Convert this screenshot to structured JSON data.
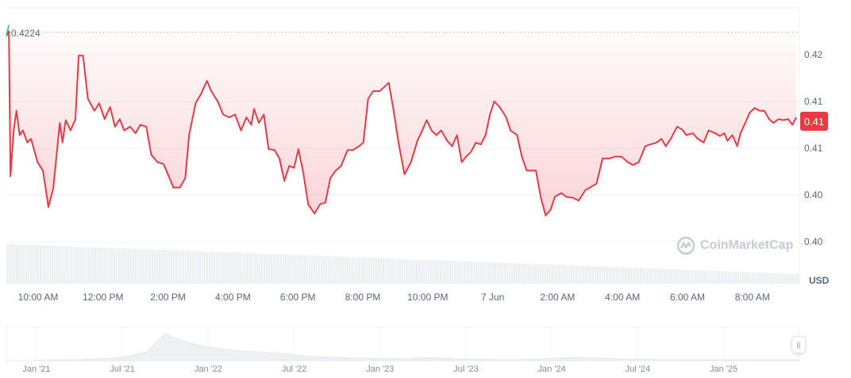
{
  "chart_data": {
    "type": "line",
    "currency_label": "USD",
    "baseline_label": "0.4224",
    "current_price_label": "0.41",
    "y_tick_labels": [
      "0.42",
      "0.41",
      "0.41",
      "0.40",
      "0.40"
    ],
    "y_tick_values": [
      0.42,
      0.415,
      0.41,
      0.405,
      0.4
    ],
    "x_tick_labels": [
      "10:00 AM",
      "12:00 PM",
      "2:00 PM",
      "4:00 PM",
      "6:00 PM",
      "8:00 PM",
      "10:00 PM",
      "7 Jun",
      "2:00 AM",
      "4:00 AM",
      "6:00 AM",
      "8:00 AM"
    ],
    "grid": true,
    "colors": {
      "line": "#ea3943",
      "up": "#16c784",
      "fill": "#ea3943",
      "badge": "#ea3943"
    },
    "series": [
      {
        "points": [
          [
            "09:00",
            0.422
          ],
          [
            "09:06",
            0.4225
          ],
          [
            "09:09",
            0.407
          ],
          [
            "09:15",
            0.4119
          ],
          [
            "09:20",
            0.414
          ],
          [
            "09:26",
            0.4114
          ],
          [
            "09:32",
            0.4119
          ],
          [
            "09:40",
            0.4106
          ],
          [
            "09:47",
            0.411
          ],
          [
            "09:59",
            0.4085
          ],
          [
            "10:09",
            0.4076
          ],
          [
            "10:19",
            0.4037
          ],
          [
            "10:28",
            0.4057
          ],
          [
            "10:40",
            0.4127
          ],
          [
            "10:45",
            0.4106
          ],
          [
            "10:51",
            0.413
          ],
          [
            "11:00",
            0.4119
          ],
          [
            "11:09",
            0.4131
          ],
          [
            "11:15",
            0.4199
          ],
          [
            "11:23",
            0.4199
          ],
          [
            "11:32",
            0.4153
          ],
          [
            "11:44",
            0.414
          ],
          [
            "11:53",
            0.4148
          ],
          [
            "12:03",
            0.4131
          ],
          [
            "12:13",
            0.4144
          ],
          [
            "12:22",
            0.4123
          ],
          [
            "12:31",
            0.4131
          ],
          [
            "12:39",
            0.4119
          ],
          [
            "12:50",
            0.4123
          ],
          [
            "13:00",
            0.4116
          ],
          [
            "13:09",
            0.4125
          ],
          [
            "13:20",
            0.4123
          ],
          [
            "13:29",
            0.4093
          ],
          [
            "13:41",
            0.4085
          ],
          [
            "13:52",
            0.4083
          ],
          [
            "14:03",
            0.4068
          ],
          [
            "14:10",
            0.4058
          ],
          [
            "14:22",
            0.4058
          ],
          [
            "14:32",
            0.4068
          ],
          [
            "14:39",
            0.4114
          ],
          [
            "14:51",
            0.4148
          ],
          [
            "15:01",
            0.4158
          ],
          [
            "15:12",
            0.4172
          ],
          [
            "15:20",
            0.4161
          ],
          [
            "15:32",
            0.415
          ],
          [
            "15:42",
            0.4136
          ],
          [
            "15:53",
            0.4133
          ],
          [
            "16:04",
            0.4136
          ],
          [
            "16:15",
            0.4119
          ],
          [
            "16:25",
            0.4133
          ],
          [
            "16:34",
            0.4125
          ],
          [
            "16:39",
            0.4142
          ],
          [
            "16:48",
            0.4127
          ],
          [
            "16:57",
            0.4136
          ],
          [
            "17:06",
            0.4099
          ],
          [
            "17:17",
            0.4098
          ],
          [
            "17:26",
            0.4089
          ],
          [
            "17:35",
            0.4065
          ],
          [
            "17:44",
            0.4081
          ],
          [
            "17:53",
            0.4079
          ],
          [
            "18:01",
            0.4099
          ],
          [
            "18:10",
            0.4074
          ],
          [
            "18:19",
            0.404
          ],
          [
            "18:31",
            0.403
          ],
          [
            "18:41",
            0.404
          ],
          [
            "18:51",
            0.4042
          ],
          [
            "19:00",
            0.4068
          ],
          [
            "19:10",
            0.4076
          ],
          [
            "19:20",
            0.4081
          ],
          [
            "19:32",
            0.4098
          ],
          [
            "19:42",
            0.4098
          ],
          [
            "19:53",
            0.4102
          ],
          [
            "20:01",
            0.4106
          ],
          [
            "20:10",
            0.4153
          ],
          [
            "20:19",
            0.4161
          ],
          [
            "20:31",
            0.4161
          ],
          [
            "20:39",
            0.4165
          ],
          [
            "20:48",
            0.417
          ],
          [
            "20:57",
            0.414
          ],
          [
            "21:06",
            0.4106
          ],
          [
            "21:17",
            0.4072
          ],
          [
            "21:29",
            0.4085
          ],
          [
            "21:41",
            0.4108
          ],
          [
            "21:50",
            0.4119
          ],
          [
            "21:58",
            0.413
          ],
          [
            "22:07",
            0.4119
          ],
          [
            "22:16",
            0.4114
          ],
          [
            "22:25",
            0.4119
          ],
          [
            "22:36",
            0.4108
          ],
          [
            "22:45",
            0.4102
          ],
          [
            "22:54",
            0.4114
          ],
          [
            "23:03",
            0.4085
          ],
          [
            "23:11",
            0.4091
          ],
          [
            "23:20",
            0.4096
          ],
          [
            "23:29",
            0.4106
          ],
          [
            "23:38",
            0.4104
          ],
          [
            "23:47",
            0.4114
          ],
          [
            "23:55",
            0.4136
          ],
          [
            "00:03",
            0.415
          ],
          [
            "00:13",
            0.4144
          ],
          [
            "00:25",
            0.4133
          ],
          [
            "00:33",
            0.4119
          ],
          [
            "00:45",
            0.4114
          ],
          [
            "00:54",
            0.4091
          ],
          [
            "01:03",
            0.4076
          ],
          [
            "01:12",
            0.4076
          ],
          [
            "01:20",
            0.4076
          ],
          [
            "01:29",
            0.4047
          ],
          [
            "01:38",
            0.4028
          ],
          [
            "01:47",
            0.4034
          ],
          [
            "01:55",
            0.4048
          ],
          [
            "02:07",
            0.4052
          ],
          [
            "02:16",
            0.4048
          ],
          [
            "02:28",
            0.4047
          ],
          [
            "02:39",
            0.4044
          ],
          [
            "02:51",
            0.4055
          ],
          [
            "03:03",
            0.4059
          ],
          [
            "03:12",
            0.4062
          ],
          [
            "03:23",
            0.4089
          ],
          [
            "03:35",
            0.4089
          ],
          [
            "03:47",
            0.4091
          ],
          [
            "03:58",
            0.4091
          ],
          [
            "04:10",
            0.4085
          ],
          [
            "04:19",
            0.4082
          ],
          [
            "04:30",
            0.4085
          ],
          [
            "04:42",
            0.4102
          ],
          [
            "04:51",
            0.4104
          ],
          [
            "05:03",
            0.4106
          ],
          [
            "05:12",
            0.411
          ],
          [
            "05:20",
            0.4102
          ],
          [
            "05:29",
            0.411
          ],
          [
            "05:41",
            0.4123
          ],
          [
            "05:50",
            0.412
          ],
          [
            "05:58",
            0.4114
          ],
          [
            "06:10",
            0.4116
          ],
          [
            "06:19",
            0.411
          ],
          [
            "06:30",
            0.4106
          ],
          [
            "06:39",
            0.4119
          ],
          [
            "06:51",
            0.4116
          ],
          [
            "07:00",
            0.4113
          ],
          [
            "07:08",
            0.4116
          ],
          [
            "07:14",
            0.4108
          ],
          [
            "07:23",
            0.4114
          ],
          [
            "07:32",
            0.4102
          ],
          [
            "07:38",
            0.4116
          ],
          [
            "07:47",
            0.4127
          ],
          [
            "07:55",
            0.4138
          ],
          [
            "08:04",
            0.4143
          ],
          [
            "08:13",
            0.414
          ],
          [
            "08:22",
            0.414
          ],
          [
            "08:31",
            0.4131
          ],
          [
            "08:39",
            0.4127
          ],
          [
            "08:48",
            0.4131
          ],
          [
            "08:57",
            0.413
          ],
          [
            "09:06",
            0.4131
          ],
          [
            "09:14",
            0.4125
          ],
          [
            "09:21",
            0.4133
          ]
        ]
      }
    ]
  },
  "navigator": {
    "x_tick_labels": [
      "Jan '21",
      "Jul '21",
      "Jan '22",
      "Jul '22",
      "Jan '23",
      "Jul '23",
      "Jan '24",
      "Jul '24",
      "Jan '25"
    ],
    "series": [
      0,
      0,
      0.01,
      0.02,
      0.03,
      0.05,
      0.08,
      0.15,
      0.3,
      0.9,
      0.65,
      0.5,
      0.4,
      0.33,
      0.3,
      0.26,
      0.22,
      0.14,
      0.12,
      0.1,
      0.08,
      0.07,
      0.06,
      0.05,
      0.1,
      0.06,
      0.05,
      0.04,
      0.03,
      0.03,
      0.04,
      0.08,
      0.1,
      0.09,
      0.07,
      0.05,
      0.04,
      0.03,
      0.03,
      0.02,
      0.02,
      0.02,
      0.03,
      0.02,
      0.02,
      0.02
    ],
    "handle_icon": "drag-handle-icon"
  },
  "watermark": {
    "text": "CoinMarketCap",
    "icon": "coinmarketcap-logo-icon"
  }
}
